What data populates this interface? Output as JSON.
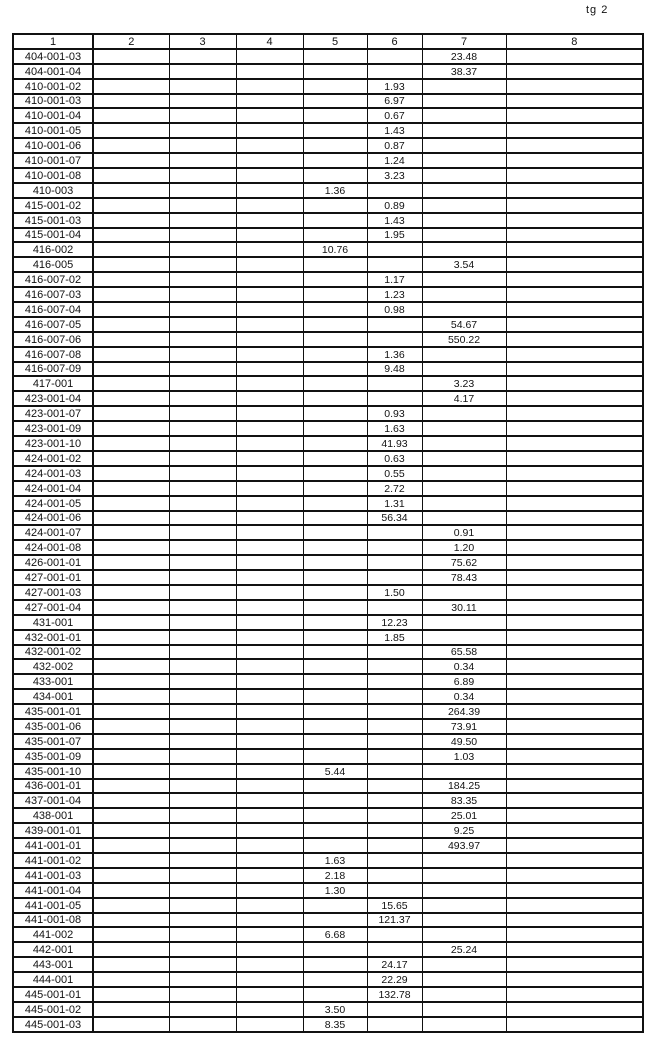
{
  "page_label": "tg 2",
  "headers": [
    "1",
    "2",
    "3",
    "4",
    "5",
    "6",
    "7",
    "8"
  ],
  "rows": [
    [
      "404-001-03",
      "",
      "",
      "",
      "",
      "",
      "23.48",
      ""
    ],
    [
      "404-001-04",
      "",
      "",
      "",
      "",
      "",
      "38.37",
      ""
    ],
    [
      "410-001-02",
      "",
      "",
      "",
      "",
      "1.93",
      "",
      ""
    ],
    [
      "410-001-03",
      "",
      "",
      "",
      "",
      "6.97",
      "",
      ""
    ],
    [
      "410-001-04",
      "",
      "",
      "",
      "",
      "0.67",
      "",
      ""
    ],
    [
      "410-001-05",
      "",
      "",
      "",
      "",
      "1.43",
      "",
      ""
    ],
    [
      "410-001-06",
      "",
      "",
      "",
      "",
      "0.87",
      "",
      ""
    ],
    [
      "410-001-07",
      "",
      "",
      "",
      "",
      "1.24",
      "",
      ""
    ],
    [
      "410-001-08",
      "",
      "",
      "",
      "",
      "3.23",
      "",
      ""
    ],
    [
      "410-003",
      "",
      "",
      "",
      "1.36",
      "",
      "",
      ""
    ],
    [
      "415-001-02",
      "",
      "",
      "",
      "",
      "0.89",
      "",
      ""
    ],
    [
      "415-001-03",
      "",
      "",
      "",
      "",
      "1.43",
      "",
      ""
    ],
    [
      "415-001-04",
      "",
      "",
      "",
      "",
      "1.95",
      "",
      ""
    ],
    [
      "416-002",
      "",
      "",
      "",
      "10.76",
      "",
      "",
      ""
    ],
    [
      "416-005",
      "",
      "",
      "",
      "",
      "",
      "3.54",
      ""
    ],
    [
      "416-007-02",
      "",
      "",
      "",
      "",
      "1.17",
      "",
      ""
    ],
    [
      "416-007-03",
      "",
      "",
      "",
      "",
      "1.23",
      "",
      ""
    ],
    [
      "416-007-04",
      "",
      "",
      "",
      "",
      "0.98",
      "",
      ""
    ],
    [
      "416-007-05",
      "",
      "",
      "",
      "",
      "",
      "54.67",
      ""
    ],
    [
      "416-007-06",
      "",
      "",
      "",
      "",
      "",
      "550.22",
      ""
    ],
    [
      "416-007-08",
      "",
      "",
      "",
      "",
      "1.36",
      "",
      ""
    ],
    [
      "416-007-09",
      "",
      "",
      "",
      "",
      "9.48",
      "",
      ""
    ],
    [
      "417-001",
      "",
      "",
      "",
      "",
      "",
      "3.23",
      ""
    ],
    [
      "423-001-04",
      "",
      "",
      "",
      "",
      "",
      "4.17",
      ""
    ],
    [
      "423-001-07",
      "",
      "",
      "",
      "",
      "0.93",
      "",
      ""
    ],
    [
      "423-001-09",
      "",
      "",
      "",
      "",
      "1.63",
      "",
      ""
    ],
    [
      "423-001-10",
      "",
      "",
      "",
      "",
      "41.93",
      "",
      ""
    ],
    [
      "424-001-02",
      "",
      "",
      "",
      "",
      "0.63",
      "",
      ""
    ],
    [
      "424-001-03",
      "",
      "",
      "",
      "",
      "0.55",
      "",
      ""
    ],
    [
      "424-001-04",
      "",
      "",
      "",
      "",
      "2.72",
      "",
      ""
    ],
    [
      "424-001-05",
      "",
      "",
      "",
      "",
      "1.31",
      "",
      ""
    ],
    [
      "424-001-06",
      "",
      "",
      "",
      "",
      "56.34",
      "",
      ""
    ],
    [
      "424-001-07",
      "",
      "",
      "",
      "",
      "",
      "0.91",
      ""
    ],
    [
      "424-001-08",
      "",
      "",
      "",
      "",
      "",
      "1.20",
      ""
    ],
    [
      "426-001-01",
      "",
      "",
      "",
      "",
      "",
      "75.62",
      ""
    ],
    [
      "427-001-01",
      "",
      "",
      "",
      "",
      "",
      "78.43",
      ""
    ],
    [
      "427-001-03",
      "",
      "",
      "",
      "",
      "1.50",
      "",
      ""
    ],
    [
      "427-001-04",
      "",
      "",
      "",
      "",
      "",
      "30.11",
      ""
    ],
    [
      "431-001",
      "",
      "",
      "",
      "",
      "12.23",
      "",
      ""
    ],
    [
      "432-001-01",
      "",
      "",
      "",
      "",
      "1.85",
      "",
      ""
    ],
    [
      "432-001-02",
      "",
      "",
      "",
      "",
      "",
      "65.58",
      ""
    ],
    [
      "432-002",
      "",
      "",
      "",
      "",
      "",
      "0.34",
      ""
    ],
    [
      "433-001",
      "",
      "",
      "",
      "",
      "",
      "6.89",
      ""
    ],
    [
      "434-001",
      "",
      "",
      "",
      "",
      "",
      "0.34",
      ""
    ],
    [
      "435-001-01",
      "",
      "",
      "",
      "",
      "",
      "264.39",
      ""
    ],
    [
      "435-001-06",
      "",
      "",
      "",
      "",
      "",
      "73.91",
      ""
    ],
    [
      "435-001-07",
      "",
      "",
      "",
      "",
      "",
      "49.50",
      ""
    ],
    [
      "435-001-09",
      "",
      "",
      "",
      "",
      "",
      "1.03",
      ""
    ],
    [
      "435-001-10",
      "",
      "",
      "",
      "5.44",
      "",
      "",
      ""
    ],
    [
      "436-001-01",
      "",
      "",
      "",
      "",
      "",
      "184.25",
      ""
    ],
    [
      "437-001-04",
      "",
      "",
      "",
      "",
      "",
      "83.35",
      ""
    ],
    [
      "438-001",
      "",
      "",
      "",
      "",
      "",
      "25.01",
      ""
    ],
    [
      "439-001-01",
      "",
      "",
      "",
      "",
      "",
      "9.25",
      ""
    ],
    [
      "441-001-01",
      "",
      "",
      "",
      "",
      "",
      "493.97",
      ""
    ],
    [
      "441-001-02",
      "",
      "",
      "",
      "1.63",
      "",
      "",
      ""
    ],
    [
      "441-001-03",
      "",
      "",
      "",
      "2.18",
      "",
      "",
      ""
    ],
    [
      "441-001-04",
      "",
      "",
      "",
      "1.30",
      "",
      "",
      ""
    ],
    [
      "441-001-05",
      "",
      "",
      "",
      "",
      "15.65",
      "",
      ""
    ],
    [
      "441-001-08",
      "",
      "",
      "",
      "",
      "121.37",
      "",
      ""
    ],
    [
      "441-002",
      "",
      "",
      "",
      "6.68",
      "",
      "",
      ""
    ],
    [
      "442-001",
      "",
      "",
      "",
      "",
      "",
      "25.24",
      ""
    ],
    [
      "443-001",
      "",
      "",
      "",
      "",
      "24.17",
      "",
      ""
    ],
    [
      "444-001",
      "",
      "",
      "",
      "",
      "22.29",
      "",
      ""
    ],
    [
      "445-001-01",
      "",
      "",
      "",
      "",
      "132.78",
      "",
      ""
    ],
    [
      "445-001-02",
      "",
      "",
      "",
      "3.50",
      "",
      "",
      ""
    ],
    [
      "445-001-03",
      "",
      "",
      "",
      "8.35",
      "",
      "",
      ""
    ]
  ]
}
